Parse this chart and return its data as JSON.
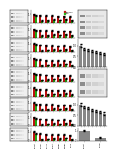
{
  "n_rows": 9,
  "bg_color": "#ffffff",
  "bar_color_red": "#bb1111",
  "bar_color_green": "#22aa11",
  "bar_color_gray": "#888888",
  "bar_color_darkgray": "#555555",
  "group_labels": [
    "siCont",
    "siSnail",
    "siSlug",
    "siTwist",
    "siZEB1",
    "siZEB2",
    "siVim"
  ],
  "row_panels": [
    {
      "bar_values_1": [
        1.0,
        0.9,
        0.85,
        0.82,
        0.78,
        0.8,
        0.75
      ],
      "bar_values_2": [
        0.9,
        0.28,
        0.32,
        0.38,
        0.35,
        0.42,
        0.3
      ],
      "errors_1": [
        0.06,
        0.05,
        0.05,
        0.05,
        0.05,
        0.05,
        0.05
      ],
      "errors_2": [
        0.06,
        0.04,
        0.04,
        0.04,
        0.04,
        0.04,
        0.04
      ],
      "wb_bands": [
        3,
        7
      ],
      "has_legend": true
    },
    {
      "bar_values_1": [
        1.0,
        0.88,
        0.82,
        0.79,
        0.76,
        0.78,
        0.72
      ],
      "bar_values_2": [
        0.88,
        0.25,
        0.3,
        0.35,
        0.32,
        0.4,
        0.27
      ],
      "errors_1": [
        0.06,
        0.05,
        0.05,
        0.05,
        0.05,
        0.05,
        0.05
      ],
      "errors_2": [
        0.06,
        0.04,
        0.04,
        0.04,
        0.04,
        0.04,
        0.04
      ],
      "wb_bands": [
        3,
        7
      ],
      "has_legend": false
    },
    {
      "bar_values_1": [
        1.0,
        0.86,
        0.8,
        0.77,
        0.74,
        0.76,
        0.7
      ],
      "bar_values_2": [
        0.86,
        0.22,
        0.28,
        0.33,
        0.3,
        0.38,
        0.25
      ],
      "errors_1": [
        0.06,
        0.05,
        0.05,
        0.05,
        0.05,
        0.05,
        0.05
      ],
      "errors_2": [
        0.06,
        0.04,
        0.04,
        0.04,
        0.04,
        0.04,
        0.04
      ],
      "wb_bands": [
        3,
        7
      ],
      "has_legend": false
    },
    {
      "bar_values_1": [
        1.0,
        0.84,
        0.78,
        0.75,
        0.72,
        0.74,
        0.68
      ],
      "bar_values_2": [
        0.84,
        0.2,
        0.26,
        0.31,
        0.28,
        0.36,
        0.23
      ],
      "errors_1": [
        0.06,
        0.05,
        0.05,
        0.05,
        0.05,
        0.05,
        0.05
      ],
      "errors_2": [
        0.06,
        0.04,
        0.04,
        0.04,
        0.04,
        0.04,
        0.04
      ],
      "wb_bands": [
        3,
        7
      ],
      "has_legend": false
    },
    {
      "bar_values_1": [
        1.0,
        0.85,
        0.79,
        0.76,
        0.73,
        0.75,
        0.69
      ],
      "bar_values_2": [
        0.85,
        0.21,
        0.27,
        0.32,
        0.29,
        0.37,
        0.24
      ],
      "errors_1": [
        0.06,
        0.05,
        0.05,
        0.05,
        0.05,
        0.05,
        0.05
      ],
      "errors_2": [
        0.06,
        0.04,
        0.04,
        0.04,
        0.04,
        0.04,
        0.04
      ],
      "wb_bands": [
        3,
        7
      ],
      "has_legend": false
    },
    {
      "bar_values_1": [
        1.0,
        0.83,
        0.77,
        0.74,
        0.71,
        0.73,
        0.67
      ],
      "bar_values_2": [
        0.83,
        0.19,
        0.25,
        0.3,
        0.27,
        0.35,
        0.22
      ],
      "errors_1": [
        0.06,
        0.05,
        0.05,
        0.05,
        0.05,
        0.05,
        0.05
      ],
      "errors_2": [
        0.06,
        0.04,
        0.04,
        0.04,
        0.04,
        0.04,
        0.04
      ],
      "wb_bands": [
        3,
        7
      ],
      "has_legend": false
    },
    {
      "bar_values_1": [
        1.0,
        0.82,
        0.76,
        0.73,
        0.7,
        0.72,
        0.66
      ],
      "bar_values_2": [
        0.82,
        0.18,
        0.24,
        0.29,
        0.26,
        0.34,
        0.21
      ],
      "errors_1": [
        0.06,
        0.05,
        0.05,
        0.05,
        0.05,
        0.05,
        0.05
      ],
      "errors_2": [
        0.06,
        0.04,
        0.04,
        0.04,
        0.04,
        0.04,
        0.04
      ],
      "wb_bands": [
        3,
        7
      ],
      "has_legend": false
    },
    {
      "bar_values_1": [
        1.0,
        0.8,
        0.74,
        0.71,
        0.68,
        0.7,
        0.64
      ],
      "bar_values_2": [
        0.8,
        0.16,
        0.22,
        0.27,
        0.24,
        0.32,
        0.19
      ],
      "errors_1": [
        0.06,
        0.05,
        0.05,
        0.05,
        0.05,
        0.05,
        0.05
      ],
      "errors_2": [
        0.06,
        0.04,
        0.04,
        0.04,
        0.04,
        0.04,
        0.04
      ],
      "wb_bands": [
        3,
        7
      ],
      "has_legend": false
    },
    {
      "bar_values_1": [
        1.0,
        0.78,
        0.72,
        0.69,
        0.66,
        0.68,
        0.62
      ],
      "bar_values_2": [
        0.78,
        0.14,
        0.2,
        0.25,
        0.22,
        0.3,
        0.17
      ],
      "errors_1": [
        0.06,
        0.05,
        0.05,
        0.05,
        0.05,
        0.05,
        0.05
      ],
      "errors_2": [
        0.06,
        0.04,
        0.04,
        0.04,
        0.04,
        0.04,
        0.04
      ],
      "wb_bands": [
        3,
        7
      ],
      "has_legend": false
    }
  ],
  "right_col": [
    {
      "type": "western",
      "n_bands": 4,
      "n_lanes": 4,
      "span": 2
    },
    {
      "type": "bar_gray",
      "values": [
        1.0,
        0.85,
        0.8,
        0.75,
        0.7,
        0.65,
        0.6
      ],
      "errors": [
        0.07,
        0.05,
        0.05,
        0.05,
        0.05,
        0.05,
        0.05
      ],
      "span": 2
    },
    {
      "type": "western",
      "n_bands": 3,
      "n_lanes": 4,
      "span": 2
    },
    {
      "type": "bar_gray",
      "values": [
        1.0,
        0.88,
        0.82,
        0.76,
        0.7,
        0.64,
        0.58
      ],
      "errors": [
        0.07,
        0.05,
        0.05,
        0.05,
        0.05,
        0.05,
        0.05
      ],
      "span": 2
    },
    {
      "type": "western",
      "n_bands": 2,
      "n_lanes": 3,
      "span": 1
    },
    {
      "type": "bar_gray_single",
      "values": [
        1.0,
        0.3
      ],
      "errors": [
        0.08,
        0.06
      ],
      "span": 1
    }
  ]
}
